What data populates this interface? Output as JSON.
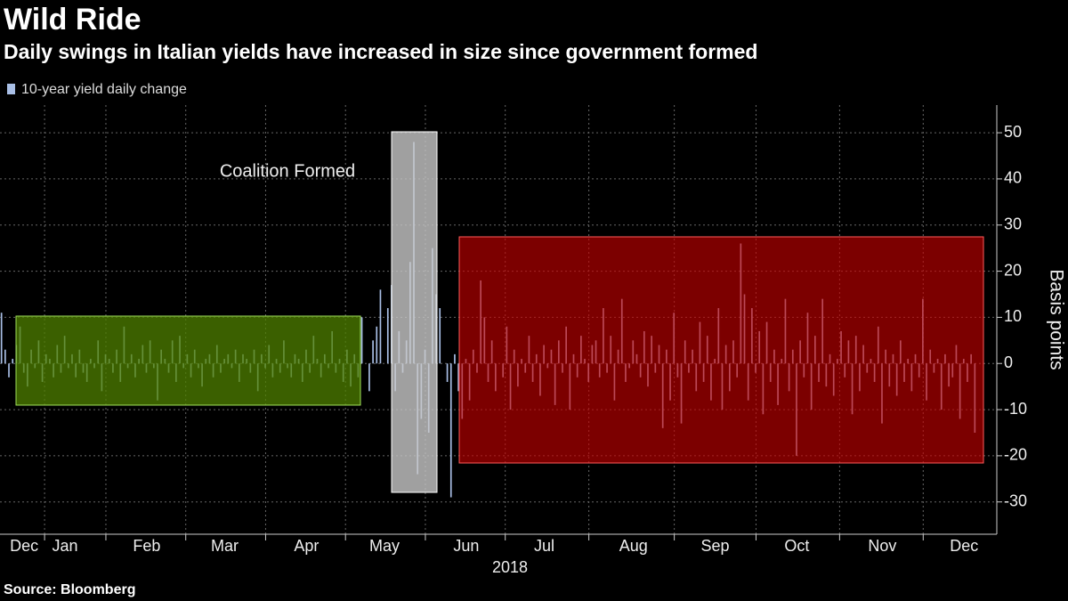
{
  "chart_data": {
    "type": "bar",
    "title": "Wild Ride",
    "subtitle": "Daily swings in Italian yields have increased in size since government formed",
    "ylabel": "Basis points",
    "xlabel": "2018",
    "annotation": "Coalition Formed",
    "source": "Source: Bloomberg",
    "categories": [
      null,
      null,
      null,
      null,
      null,
      null,
      "Dec",
      null,
      null,
      null,
      null,
      null,
      null,
      null,
      null,
      null,
      null,
      "Jan",
      null,
      null,
      null,
      null,
      null,
      null,
      null,
      null,
      null,
      null,
      null,
      null,
      null,
      null,
      null,
      null,
      null,
      null,
      null,
      null,
      null,
      "Feb",
      null,
      null,
      null,
      null,
      null,
      null,
      null,
      null,
      null,
      null,
      null,
      null,
      null,
      null,
      null,
      null,
      null,
      null,
      null,
      null,
      "Mar",
      null,
      null,
      null,
      null,
      null,
      null,
      null,
      null,
      null,
      null,
      null,
      null,
      null,
      null,
      null,
      null,
      null,
      null,
      null,
      null,
      null,
      "Apr",
      null,
      null,
      null,
      null,
      null,
      null,
      null,
      null,
      null,
      null,
      null,
      null,
      null,
      null,
      null,
      null,
      null,
      null,
      null,
      null,
      "May",
      null,
      null,
      null,
      null,
      null,
      null,
      null,
      null,
      null,
      null,
      null,
      null,
      null,
      null,
      null,
      null,
      null,
      null,
      null,
      null,
      null,
      "Jun",
      null,
      null,
      null,
      null,
      null,
      null,
      null,
      null,
      null,
      null,
      null,
      null,
      null,
      null,
      null,
      null,
      null,
      null,
      null,
      null,
      "Jul",
      null,
      null,
      null,
      null,
      null,
      null,
      null,
      null,
      null,
      null,
      null,
      null,
      null,
      null,
      null,
      null,
      null,
      null,
      null,
      null,
      null,
      null,
      null,
      "Aug",
      null,
      null,
      null,
      null,
      null,
      null,
      null,
      null,
      null,
      null,
      null,
      null,
      null,
      null,
      null,
      null,
      null,
      null,
      null,
      null,
      null,
      "Sep",
      null,
      null,
      null,
      null,
      null,
      null,
      null,
      null,
      null,
      null,
      null,
      null,
      null,
      null,
      null,
      null,
      null,
      null,
      null,
      null,
      null,
      "Oct",
      null,
      null,
      null,
      null,
      null,
      null,
      null,
      null,
      null,
      null,
      null,
      null,
      null,
      null,
      null,
      null,
      null,
      null,
      null,
      null,
      null,
      null,
      "Nov",
      null,
      null,
      null,
      null,
      null,
      null,
      null,
      null,
      null,
      null,
      null,
      null,
      null,
      null,
      null,
      null,
      null,
      null,
      null,
      null,
      null,
      "Dec",
      null,
      null,
      null,
      null
    ],
    "series": [
      {
        "name": "10-year yield daily change",
        "color": "#a9bfe6",
        "values": [
          11,
          3,
          -3,
          1,
          4,
          8,
          -2,
          -5,
          3,
          -1,
          5,
          -4,
          2,
          1,
          -3,
          4,
          -2,
          6,
          -1,
          2,
          -3,
          3,
          -2,
          -4,
          1,
          -1,
          5,
          -6,
          2,
          1,
          -2,
          3,
          -4,
          8,
          -1,
          2,
          -3,
          1,
          4,
          -2,
          5,
          -1,
          -8,
          3,
          1,
          -2,
          5,
          -4,
          6,
          -1,
          2,
          -3,
          3,
          -1,
          -5,
          1,
          2,
          -3,
          4,
          -2,
          1,
          2,
          -1,
          3,
          -4,
          2,
          1,
          -2,
          3,
          -6,
          2,
          -1,
          4,
          -3,
          1,
          -2,
          5,
          -1,
          -3,
          2,
          1,
          -4,
          3,
          -2,
          6,
          1,
          -3,
          2,
          -1,
          7,
          -2,
          1,
          -4,
          3,
          -5,
          2,
          -3,
          10,
          0,
          -6,
          5,
          8,
          16,
          0,
          12,
          17,
          -6,
          7,
          -2,
          5,
          22,
          48,
          -24,
          -12,
          3,
          -15,
          25,
          15,
          12,
          0,
          -4,
          -29,
          2,
          -6,
          -12,
          1,
          -8,
          3,
          -2,
          18,
          10,
          -4,
          5,
          -6,
          0,
          -3,
          8,
          -10,
          3,
          -5,
          1,
          -2,
          6,
          -4,
          2,
          -7,
          4,
          -1,
          3,
          -9,
          5,
          -2,
          8,
          -10,
          2,
          -3,
          6,
          1,
          -4,
          4,
          5,
          -3,
          12,
          -2,
          6,
          -8,
          3,
          14,
          -4,
          -1,
          5,
          2,
          -3,
          7,
          -5,
          6,
          -2,
          4,
          -14,
          3,
          -8,
          11,
          -3,
          -13,
          5,
          -2,
          3,
          -6,
          9,
          -4,
          6,
          -8,
          1,
          12,
          -10,
          4,
          -6,
          5,
          -3,
          26,
          15,
          -8,
          12,
          -2,
          7,
          -11,
          9,
          -4,
          3,
          -9,
          1,
          14,
          -6,
          3,
          -20,
          5,
          -3,
          11,
          -10,
          6,
          -4,
          14,
          -5,
          2,
          -7,
          1,
          7,
          -3,
          5,
          -11,
          6,
          -6,
          4,
          -2,
          1,
          -4,
          8,
          -13,
          3,
          -5,
          2,
          -7,
          5,
          -4,
          1,
          -6,
          2,
          -3,
          14,
          -8,
          3,
          -2,
          1,
          -10,
          2,
          -5,
          -3,
          4,
          -12,
          1,
          -4,
          2,
          -15,
          0
        ]
      }
    ],
    "ylim": [
      -37,
      56
    ],
    "yticks": [
      -30,
      -20,
      -10,
      0,
      10,
      20,
      30,
      40,
      50
    ],
    "grid": true,
    "legend": "top-left"
  }
}
